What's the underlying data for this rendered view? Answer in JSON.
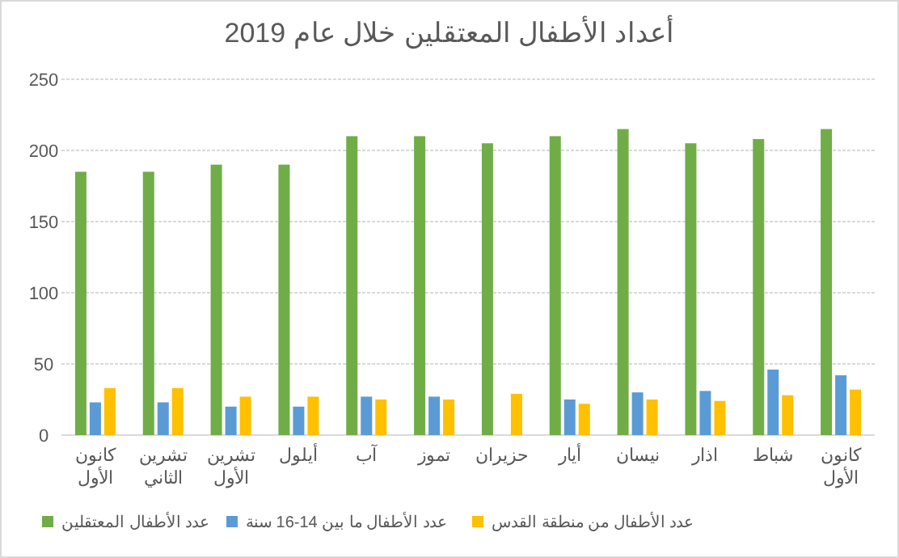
{
  "chart_data": {
    "type": "bar",
    "title": "أعداد الأطفال المعتقلين خلال عام 2019",
    "categories": [
      "كانون الأول",
      "تشرين الثاني",
      "تشرين الأول",
      "أيلول",
      "آب",
      "تموز",
      "حزيران",
      "أيار",
      "نيسان",
      "اذار",
      "شباط",
      "كانون الأول"
    ],
    "series": [
      {
        "name": "عدد الأطفال المعتقلين",
        "color": "#70ad47",
        "values": [
          185,
          185,
          190,
          190,
          210,
          210,
          205,
          210,
          215,
          205,
          208,
          215
        ]
      },
      {
        "name": "عدد الأطفال ما بين 14-16 سنة",
        "color": "#5b9bd5",
        "values": [
          23,
          23,
          20,
          20,
          27,
          27,
          null,
          25,
          30,
          31,
          46,
          42
        ]
      },
      {
        "name": "عدد الأطفال من منطقة القدس",
        "color": "#ffc000",
        "values": [
          33,
          33,
          27,
          27,
          25,
          25,
          29,
          22,
          25,
          24,
          28,
          32
        ]
      }
    ],
    "ylim": [
      0,
      250
    ],
    "yticks": [
      0,
      50,
      100,
      150,
      200,
      250
    ],
    "grid": "y",
    "legend": "bottom"
  }
}
